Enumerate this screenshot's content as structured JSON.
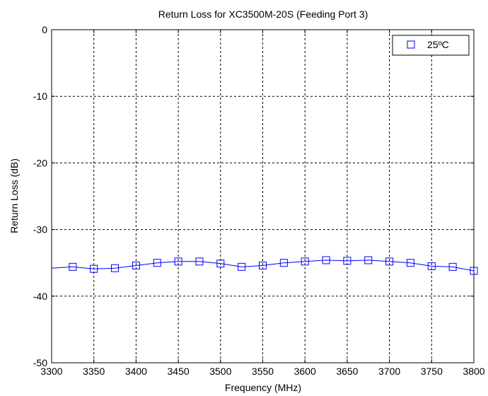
{
  "chart_data": {
    "type": "line",
    "title": "Return Loss for XC3500M-20S (Feeding Port 3)",
    "xlabel": "Frequency (MHz)",
    "ylabel": "Return Loss (dB)",
    "xlim": [
      3300,
      3800
    ],
    "ylim": [
      -50,
      0
    ],
    "xticks": [
      3300,
      3350,
      3400,
      3450,
      3500,
      3550,
      3600,
      3650,
      3700,
      3750,
      3800
    ],
    "yticks": [
      0,
      -10,
      -20,
      -30,
      -40,
      -50
    ],
    "grid": true,
    "legend_position": "top-right",
    "series": [
      {
        "name": "25ºC",
        "color": "#0000ff",
        "marker": "square",
        "x": [
          3300,
          3325,
          3350,
          3375,
          3400,
          3425,
          3450,
          3475,
          3500,
          3525,
          3550,
          3575,
          3600,
          3625,
          3650,
          3675,
          3700,
          3725,
          3750,
          3775,
          3800
        ],
        "y": [
          -35.8,
          -35.6,
          -35.9,
          -35.8,
          -35.4,
          -35.0,
          -34.8,
          -34.8,
          -35.1,
          -35.6,
          -35.4,
          -35.0,
          -34.8,
          -34.6,
          -34.7,
          -34.6,
          -34.8,
          -35.0,
          -35.5,
          -35.6,
          -36.2
        ]
      }
    ]
  }
}
